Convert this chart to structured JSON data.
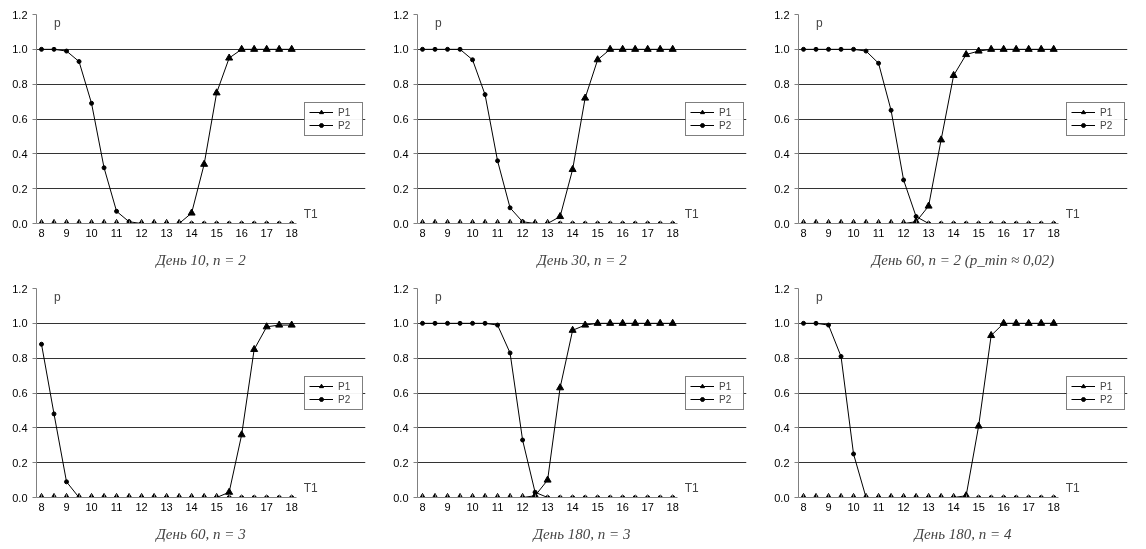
{
  "chart_data": [
    {
      "type": "line",
      "title": "День 10, n = 2",
      "xlabel": "T1",
      "ylabel": "p",
      "categories": [
        "8",
        null,
        "9",
        null,
        "10",
        null,
        "11",
        null,
        "12",
        null,
        "13",
        null,
        "14",
        null,
        "15",
        null,
        "16",
        null,
        "17",
        null,
        "18"
      ],
      "ylim": [
        0,
        1.2
      ],
      "yticks": [
        {
          "value": 0,
          "label": "0.0"
        },
        {
          "value": 0.2,
          "label": "0.2"
        },
        {
          "value": 0.4,
          "label": "0.4"
        },
        {
          "value": 0.6,
          "label": "0.6"
        },
        {
          "value": 0.8,
          "label": "0.8"
        },
        {
          "value": 1,
          "label": "1.0"
        },
        {
          "value": 1.2,
          "label": "1.2"
        }
      ],
      "grid": "y",
      "legend": "right",
      "series": [
        {
          "name": "P1",
          "color": "#000000",
          "marker": "triangle",
          "values": [
            0,
            0,
            0,
            0,
            0,
            0,
            0,
            0,
            0,
            0,
            0,
            0,
            0.06,
            0.34,
            0.75,
            0.95,
            1,
            1,
            1,
            1,
            1
          ]
        },
        {
          "name": "P2",
          "color": "#000000",
          "marker": "circle",
          "values": [
            1,
            1,
            0.99,
            0.93,
            0.69,
            0.32,
            0.07,
            0.01,
            0,
            0,
            0,
            0,
            0,
            0,
            0,
            0,
            0,
            0,
            0,
            0,
            0
          ]
        }
      ]
    },
    {
      "type": "line",
      "title": "День 30, n = 2",
      "xlabel": "T1",
      "ylabel": "p",
      "categories": [
        "8",
        null,
        "9",
        null,
        "10",
        null,
        "11",
        null,
        "12",
        null,
        "13",
        null,
        "14",
        null,
        "15",
        null,
        "16",
        null,
        "17",
        null,
        "18"
      ],
      "ylim": [
        0,
        1.2
      ],
      "yticks": [
        {
          "value": 0,
          "label": "0.0"
        },
        {
          "value": 0.2,
          "label": "0.2"
        },
        {
          "value": 0.4,
          "label": "0.4"
        },
        {
          "value": 0.6,
          "label": "0.6"
        },
        {
          "value": 0.8,
          "label": "0.8"
        },
        {
          "value": 1,
          "label": "1.0"
        },
        {
          "value": 1.2,
          "label": "1.2"
        }
      ],
      "grid": "y",
      "legend": "right",
      "series": [
        {
          "name": "P1",
          "color": "#000000",
          "marker": "triangle",
          "values": [
            0,
            0,
            0,
            0,
            0,
            0,
            0,
            0,
            0,
            0,
            0,
            0.04,
            0.31,
            0.72,
            0.94,
            1,
            1,
            1,
            1,
            1,
            1
          ]
        },
        {
          "name": "P2",
          "color": "#000000",
          "marker": "circle",
          "values": [
            1,
            1,
            1,
            1,
            0.94,
            0.74,
            0.36,
            0.09,
            0.01,
            0,
            0,
            0,
            0,
            0,
            0,
            0,
            0,
            0,
            0,
            0,
            0
          ]
        }
      ]
    },
    {
      "type": "line",
      "title": "День 60, n = 2 (p_min ≈ 0,02)",
      "xlabel": "T1",
      "ylabel": "p",
      "categories": [
        "8",
        null,
        "9",
        null,
        "10",
        null,
        "11",
        null,
        "12",
        null,
        "13",
        null,
        "14",
        null,
        "15",
        null,
        "16",
        null,
        "17",
        null,
        "18"
      ],
      "ylim": [
        0,
        1.2
      ],
      "yticks": [
        {
          "value": 0,
          "label": "0.0"
        },
        {
          "value": 0.2,
          "label": "0.2"
        },
        {
          "value": 0.4,
          "label": "0.4"
        },
        {
          "value": 0.6,
          "label": "0.6"
        },
        {
          "value": 0.8,
          "label": "0.8"
        },
        {
          "value": 1,
          "label": "1.0"
        },
        {
          "value": 1.2,
          "label": "1.2"
        }
      ],
      "grid": "y",
      "legend": "right",
      "series": [
        {
          "name": "P1",
          "color": "#000000",
          "marker": "triangle",
          "values": [
            0,
            0,
            0,
            0,
            0,
            0,
            0,
            0,
            0,
            0.01,
            0.1,
            0.48,
            0.85,
            0.97,
            0.99,
            1,
            1,
            1,
            1,
            1,
            1
          ]
        },
        {
          "name": "P2",
          "color": "#000000",
          "marker": "circle",
          "values": [
            1,
            1,
            1,
            1,
            1,
            0.99,
            0.92,
            0.65,
            0.25,
            0.04,
            0,
            0,
            0,
            0,
            0,
            0,
            0,
            0,
            0,
            0,
            0
          ]
        }
      ]
    },
    {
      "type": "line",
      "title": "День 60, n = 3",
      "xlabel": "T1",
      "ylabel": "p",
      "categories": [
        "8",
        null,
        "9",
        null,
        "10",
        null,
        "11",
        null,
        "12",
        null,
        "13",
        null,
        "14",
        null,
        "15",
        null,
        "16",
        null,
        "17",
        null,
        "18"
      ],
      "ylim": [
        0,
        1.2
      ],
      "yticks": [
        {
          "value": 0,
          "label": "0.0"
        },
        {
          "value": 0.2,
          "label": "0.2"
        },
        {
          "value": 0.4,
          "label": "0.4"
        },
        {
          "value": 0.6,
          "label": "0.6"
        },
        {
          "value": 0.8,
          "label": "0.8"
        },
        {
          "value": 1,
          "label": "1.0"
        },
        {
          "value": 1.2,
          "label": "1.2"
        }
      ],
      "grid": "y",
      "legend": "right",
      "series": [
        {
          "name": "P1",
          "color": "#000000",
          "marker": "triangle",
          "values": [
            0,
            0,
            0,
            0,
            0,
            0,
            0,
            0,
            0,
            0,
            0,
            0,
            0,
            0,
            0,
            0.03,
            0.36,
            0.85,
            0.98,
            0.99,
            0.99
          ]
        },
        {
          "name": "P2",
          "color": "#000000",
          "marker": "circle",
          "values": [
            0.88,
            0.48,
            0.09,
            0,
            0,
            0,
            0,
            0,
            0,
            0,
            0,
            0,
            0,
            0,
            0,
            0,
            0,
            0,
            0,
            0,
            0
          ]
        }
      ]
    },
    {
      "type": "line",
      "title": "День 180, n = 3",
      "xlabel": "T1",
      "ylabel": "p",
      "categories": [
        "8",
        null,
        "9",
        null,
        "10",
        null,
        "11",
        null,
        "12",
        null,
        "13",
        null,
        "14",
        null,
        "15",
        null,
        "16",
        null,
        "17",
        null,
        "18"
      ],
      "ylim": [
        0,
        1.2
      ],
      "yticks": [
        {
          "value": 0,
          "label": "0.0"
        },
        {
          "value": 0.2,
          "label": "0.2"
        },
        {
          "value": 0.4,
          "label": "0.4"
        },
        {
          "value": 0.6,
          "label": "0.6"
        },
        {
          "value": 0.8,
          "label": "0.8"
        },
        {
          "value": 1,
          "label": "1.0"
        },
        {
          "value": 1.2,
          "label": "1.2"
        }
      ],
      "grid": "y",
      "legend": "right",
      "series": [
        {
          "name": "P1",
          "color": "#000000",
          "marker": "triangle",
          "values": [
            0,
            0,
            0,
            0,
            0,
            0,
            0,
            0,
            0,
            0.01,
            0.1,
            0.63,
            0.96,
            0.99,
            1,
            1,
            1,
            1,
            1,
            1,
            1
          ]
        },
        {
          "name": "P2",
          "color": "#000000",
          "marker": "circle",
          "values": [
            1,
            1,
            1,
            1,
            1,
            1,
            0.99,
            0.83,
            0.33,
            0.03,
            0,
            0,
            0,
            0,
            0,
            0,
            0,
            0,
            0,
            0,
            0
          ]
        }
      ]
    },
    {
      "type": "line",
      "title": "День 180, n = 4",
      "xlabel": "T1",
      "ylabel": "p",
      "categories": [
        "8",
        null,
        "9",
        null,
        "10",
        null,
        "11",
        null,
        "12",
        null,
        "13",
        null,
        "14",
        null,
        "15",
        null,
        "16",
        null,
        "17",
        null,
        "18"
      ],
      "ylim": [
        0,
        1.2
      ],
      "yticks": [
        {
          "value": 0,
          "label": "0.0"
        },
        {
          "value": 0.2,
          "label": "0.2"
        },
        {
          "value": 0.4,
          "label": "0.4"
        },
        {
          "value": 0.6,
          "label": "0.6"
        },
        {
          "value": 0.8,
          "label": "0.8"
        },
        {
          "value": 1,
          "label": "1.0"
        },
        {
          "value": 1.2,
          "label": "1.2"
        }
      ],
      "grid": "y",
      "legend": "right",
      "series": [
        {
          "name": "P1",
          "color": "#000000",
          "marker": "triangle",
          "values": [
            0,
            0,
            0,
            0,
            0,
            0,
            0,
            0,
            0,
            0,
            0,
            0,
            0,
            0.01,
            0.41,
            0.93,
            1,
            1,
            1,
            1,
            1
          ]
        },
        {
          "name": "P2",
          "color": "#000000",
          "marker": "circle",
          "values": [
            1,
            1,
            0.99,
            0.81,
            0.25,
            0,
            0,
            0,
            0,
            0,
            0,
            0,
            0,
            0,
            0,
            0,
            0,
            0,
            0,
            0,
            0
          ]
        }
      ]
    }
  ]
}
